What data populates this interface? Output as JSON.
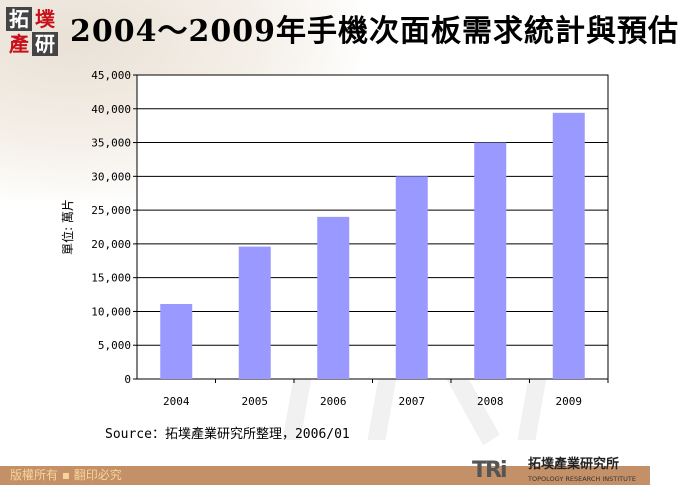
{
  "logo": {
    "chars": [
      "拓",
      "墣",
      "產",
      "研"
    ]
  },
  "footer": {
    "copyright": "版權所有 ▪ 翻印必究",
    "org_abbr": "TRi",
    "org_cn": "拓墣產業研究所",
    "org_en": "TOPOLOGY RESEARCH INSTITUTE"
  },
  "colors": {
    "bar": "#9999ff",
    "footer": "#c49068"
  },
  "chart_data": {
    "type": "bar",
    "title": "2004～2009年手機次面板需求統計與預估",
    "ylabel": "單位: 萬片",
    "xlabel": "",
    "categories": [
      "2004",
      "2005",
      "2006",
      "2007",
      "2008",
      "2009"
    ],
    "values": [
      11100,
      19600,
      24000,
      30000,
      35000,
      39400
    ],
    "ylim": [
      0,
      45000
    ],
    "yticks": [
      "0",
      "5,000",
      "10,000",
      "15,000",
      "20,000",
      "25,000",
      "30,000",
      "35,000",
      "40,000",
      "45,000"
    ],
    "grid": true,
    "source": "Source：拓墣產業研究所整理，2006/01"
  }
}
